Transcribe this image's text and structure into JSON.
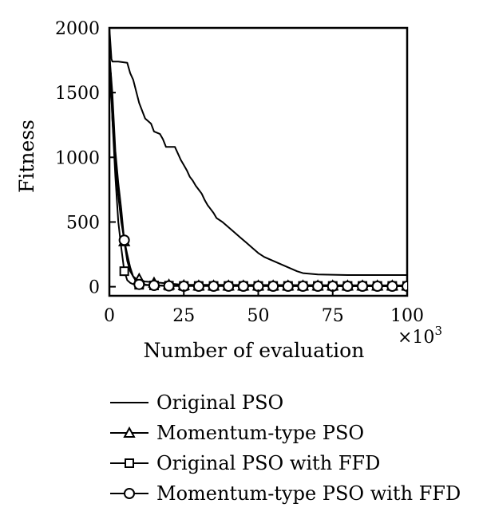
{
  "chart_data": {
    "type": "line",
    "xlabel": "Number of evaluation",
    "x_multiplier_label": "×10",
    "x_multiplier_exp": "3",
    "ylabel": "Fitness",
    "xlim": [
      0,
      100
    ],
    "ylim": [
      -70,
      2000
    ],
    "x_ticks": [
      0,
      25,
      50,
      75,
      100
    ],
    "y_ticks": [
      0,
      500,
      1000,
      1500,
      2000
    ],
    "grid": false,
    "legend_position": "bottom",
    "series": [
      {
        "name": "Original PSO",
        "marker": "none",
        "points": [
          [
            0,
            2000
          ],
          [
            0.3,
            1900
          ],
          [
            0.7,
            1760
          ],
          [
            1,
            1740
          ],
          [
            3,
            1740
          ],
          [
            6,
            1730
          ],
          [
            7,
            1650
          ],
          [
            8,
            1600
          ],
          [
            10,
            1420
          ],
          [
            12,
            1300
          ],
          [
            14,
            1260
          ],
          [
            15,
            1200
          ],
          [
            17,
            1180
          ],
          [
            18,
            1140
          ],
          [
            19,
            1080
          ],
          [
            22,
            1080
          ],
          [
            23,
            1030
          ],
          [
            24,
            980
          ],
          [
            25,
            940
          ],
          [
            26,
            900
          ],
          [
            27,
            850
          ],
          [
            28,
            820
          ],
          [
            29,
            780
          ],
          [
            30,
            750
          ],
          [
            31,
            720
          ],
          [
            32,
            670
          ],
          [
            33,
            630
          ],
          [
            34,
            600
          ],
          [
            35,
            570
          ],
          [
            36,
            530
          ],
          [
            38,
            500
          ],
          [
            40,
            460
          ],
          [
            42,
            420
          ],
          [
            44,
            380
          ],
          [
            46,
            340
          ],
          [
            48,
            300
          ],
          [
            50,
            260
          ],
          [
            52,
            230
          ],
          [
            54,
            210
          ],
          [
            57,
            180
          ],
          [
            60,
            150
          ],
          [
            63,
            120
          ],
          [
            65,
            105
          ],
          [
            70,
            95
          ],
          [
            80,
            90
          ],
          [
            100,
            90
          ]
        ]
      },
      {
        "name": "Momentum-type PSO",
        "marker": "triangle",
        "points": [
          [
            0,
            1800
          ],
          [
            1,
            1500
          ],
          [
            2,
            1050
          ],
          [
            3,
            800
          ],
          [
            4,
            600
          ],
          [
            5,
            350
          ],
          [
            6,
            200
          ],
          [
            7,
            120
          ],
          [
            8,
            80
          ],
          [
            9,
            60
          ],
          [
            10,
            45
          ],
          [
            12,
            40
          ],
          [
            15,
            35
          ],
          [
            20,
            25
          ],
          [
            25,
            15
          ],
          [
            100,
            10
          ]
        ],
        "marker_points": [
          [
            5,
            350
          ],
          [
            10,
            60
          ],
          [
            15,
            30
          ],
          [
            20,
            15
          ],
          [
            25,
            10
          ],
          [
            30,
            8
          ],
          [
            35,
            8
          ],
          [
            40,
            8
          ],
          [
            45,
            8
          ],
          [
            50,
            8
          ],
          [
            55,
            8
          ],
          [
            60,
            8
          ],
          [
            65,
            8
          ],
          [
            70,
            8
          ],
          [
            75,
            8
          ],
          [
            80,
            8
          ],
          [
            85,
            8
          ],
          [
            90,
            8
          ],
          [
            95,
            8
          ],
          [
            100,
            8
          ]
        ]
      },
      {
        "name": "Original PSO with FFD",
        "marker": "square",
        "points": [
          [
            0,
            1400
          ],
          [
            0.5,
            1650
          ],
          [
            1,
            1300
          ],
          [
            2,
            850
          ],
          [
            3,
            500
          ],
          [
            4,
            300
          ],
          [
            5,
            120
          ],
          [
            6,
            50
          ],
          [
            7,
            30
          ],
          [
            8,
            20
          ],
          [
            10,
            15
          ],
          [
            15,
            10
          ],
          [
            20,
            8
          ],
          [
            100,
            5
          ]
        ],
        "marker_points": [
          [
            5,
            120
          ],
          [
            10,
            15
          ],
          [
            15,
            10
          ],
          [
            20,
            8
          ],
          [
            25,
            6
          ],
          [
            30,
            6
          ],
          [
            35,
            6
          ],
          [
            40,
            6
          ],
          [
            45,
            6
          ],
          [
            50,
            6
          ],
          [
            55,
            6
          ],
          [
            60,
            6
          ],
          [
            65,
            6
          ],
          [
            70,
            6
          ],
          [
            75,
            6
          ],
          [
            80,
            6
          ],
          [
            85,
            6
          ],
          [
            90,
            6
          ],
          [
            95,
            6
          ],
          [
            100,
            6
          ]
        ]
      },
      {
        "name": "Momentum-type PSO with FFD",
        "marker": "circle",
        "points": [
          [
            0,
            1850
          ],
          [
            1,
            1300
          ],
          [
            2,
            950
          ],
          [
            3,
            700
          ],
          [
            4,
            500
          ],
          [
            5,
            360
          ],
          [
            6,
            250
          ],
          [
            7,
            150
          ],
          [
            8,
            80
          ],
          [
            9,
            40
          ],
          [
            10,
            20
          ],
          [
            15,
            10
          ],
          [
            20,
            6
          ],
          [
            100,
            4
          ]
        ],
        "marker_points": [
          [
            5,
            360
          ],
          [
            10,
            18
          ],
          [
            15,
            10
          ],
          [
            20,
            6
          ],
          [
            25,
            4
          ],
          [
            30,
            4
          ],
          [
            35,
            4
          ],
          [
            40,
            4
          ],
          [
            45,
            4
          ],
          [
            50,
            4
          ],
          [
            55,
            4
          ],
          [
            60,
            4
          ],
          [
            65,
            4
          ],
          [
            70,
            4
          ],
          [
            75,
            4
          ],
          [
            80,
            4
          ],
          [
            85,
            4
          ],
          [
            90,
            4
          ],
          [
            95,
            4
          ],
          [
            100,
            4
          ]
        ]
      }
    ]
  }
}
